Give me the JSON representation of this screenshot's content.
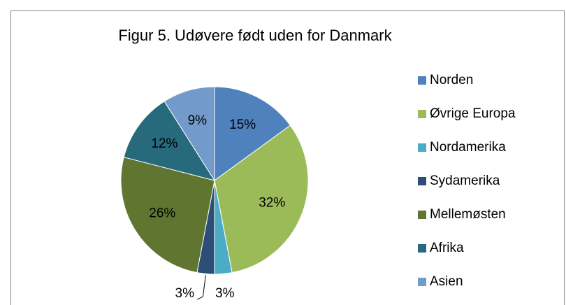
{
  "chart_data": {
    "type": "pie",
    "title": "Figur 5. Udøvere født uden for Danmark",
    "categories": [
      "Norden",
      "Øvrige Europa",
      "Nordamerika",
      "Sydamerika",
      "Mellemøsten",
      "Afrika",
      "Asien"
    ],
    "values": [
      15,
      32,
      3,
      3,
      26,
      12,
      9
    ],
    "value_labels": [
      "15%",
      "32%",
      "3%",
      "3%",
      "26%",
      "12%",
      "9%"
    ],
    "colors": [
      "#4f81bd",
      "#9bbb59",
      "#4bacc6",
      "#2c4d75",
      "#5f7530",
      "#276a7c",
      "#729aca"
    ],
    "legend": "right"
  }
}
